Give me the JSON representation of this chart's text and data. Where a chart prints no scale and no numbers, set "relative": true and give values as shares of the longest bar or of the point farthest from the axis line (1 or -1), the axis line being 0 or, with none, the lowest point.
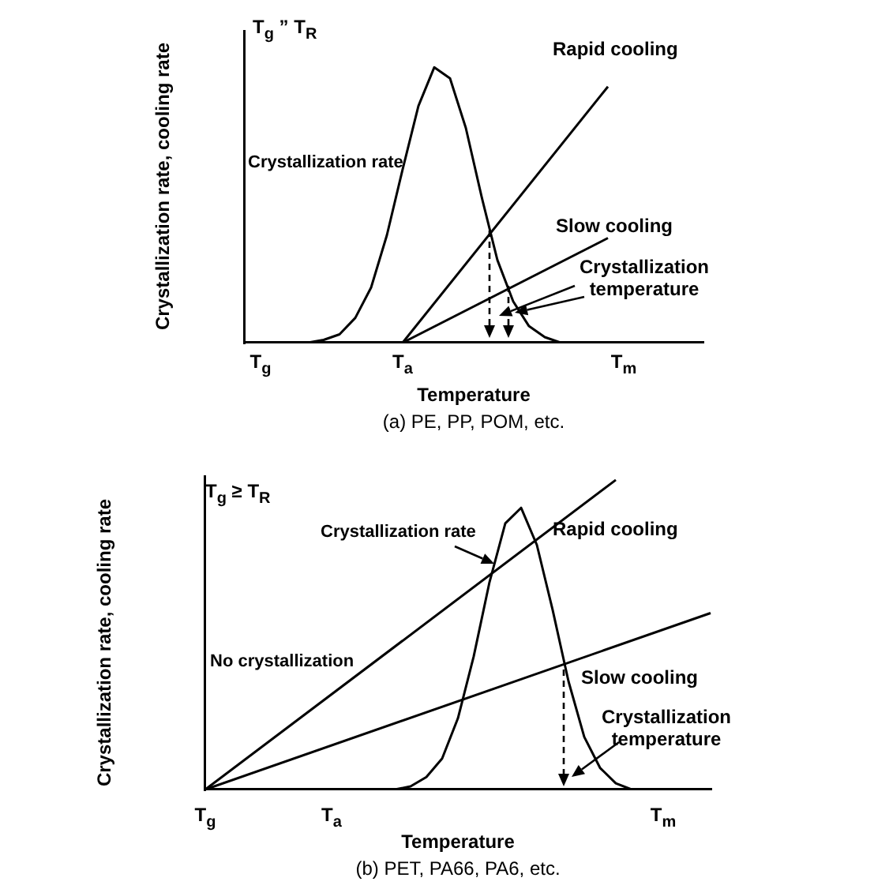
{
  "chart_data": [
    {
      "type": "line",
      "title": "(a) PE, PP, POM, etc.",
      "xlabel": "Temperature",
      "ylabel": "Crystallization rate, cooling rate",
      "relative": true,
      "grid": false,
      "legend": false,
      "marker": "none",
      "annotations": [
        "T$_{g}$ ” T$_{R}$",
        "Crystallization temperature"
      ],
      "categories": [
        null,
        "T$_{g}$",
        null,
        null,
        null,
        null,
        null,
        null,
        null,
        null,
        "T$_{a}$",
        null,
        null,
        null,
        null,
        null,
        null,
        null,
        null,
        null,
        null,
        null,
        null,
        null,
        "T$_{m}$",
        null,
        null,
        null,
        null,
        null
      ],
      "series": [
        {
          "name": "Crystallization rate",
          "color": "#000000",
          "values": [
            null,
            0,
            0,
            0,
            0,
            0.01,
            0.03,
            0.09,
            0.2,
            0.39,
            0.63,
            0.86,
            1,
            0.96,
            0.78,
            0.53,
            0.3,
            0.15,
            0.06,
            0.02,
            0,
            null,
            null,
            null,
            null,
            null,
            null,
            null,
            null,
            null
          ]
        },
        {
          "name": "Rapid cooling",
          "color": "#000000",
          "values": [
            null,
            null,
            null,
            null,
            null,
            null,
            null,
            null,
            null,
            null,
            0,
            null,
            null,
            null,
            null,
            null,
            null,
            null,
            null,
            null,
            null,
            null,
            null,
            0.93,
            null,
            null,
            null,
            null,
            null,
            null
          ]
        },
        {
          "name": "Slow cooling",
          "color": "#000000",
          "values": [
            null,
            null,
            null,
            null,
            null,
            null,
            null,
            null,
            null,
            null,
            0,
            null,
            null,
            null,
            null,
            null,
            null,
            null,
            null,
            null,
            null,
            null,
            null,
            0.38,
            null,
            null,
            null,
            null,
            null,
            null
          ]
        }
      ]
    },
    {
      "type": "line",
      "title": "(b) PET, PA66, PA6, etc.",
      "xlabel": "Temperature",
      "ylabel": "Crystallization rate, cooling rate",
      "relative": true,
      "grid": false,
      "legend": false,
      "marker": "none",
      "annotations": [
        "T$_{g}$ ≥ T$_{R}$",
        "No crystallization",
        "Crystallization temperature"
      ],
      "categories": [
        "T$_{g}$",
        null,
        null,
        null,
        null,
        null,
        null,
        null,
        "T$_{a}$",
        null,
        null,
        null,
        null,
        null,
        null,
        null,
        null,
        null,
        null,
        null,
        null,
        null,
        null,
        null,
        null,
        null,
        null,
        null,
        null,
        "T$_{m}$",
        null,
        null,
        null
      ],
      "series": [
        {
          "name": "Crystallization rate",
          "color": "#000000",
          "values": [
            null,
            null,
            null,
            null,
            null,
            null,
            null,
            null,
            0,
            0,
            0,
            0,
            0,
            0.01,
            0.04,
            0.1,
            0.23,
            0.43,
            0.67,
            0.86,
            0.91,
            0.79,
            0.58,
            0.35,
            0.17,
            0.07,
            0.02,
            0,
            0,
            0,
            0,
            0,
            null
          ]
        },
        {
          "name": "Rapid cooling",
          "color": "#000000",
          "values": [
            0,
            null,
            null,
            null,
            null,
            null,
            null,
            null,
            null,
            null,
            null,
            null,
            null,
            null,
            null,
            null,
            null,
            null,
            null,
            null,
            null,
            null,
            null,
            null,
            null,
            null,
            1,
            null,
            null,
            null,
            null,
            null,
            null
          ]
        },
        {
          "name": "Slow cooling",
          "color": "#000000",
          "values": [
            0,
            null,
            null,
            null,
            null,
            null,
            null,
            null,
            null,
            null,
            null,
            null,
            null,
            null,
            null,
            null,
            null,
            null,
            null,
            null,
            null,
            null,
            null,
            null,
            null,
            null,
            null,
            null,
            null,
            null,
            null,
            null,
            0.57
          ]
        }
      ]
    }
  ]
}
